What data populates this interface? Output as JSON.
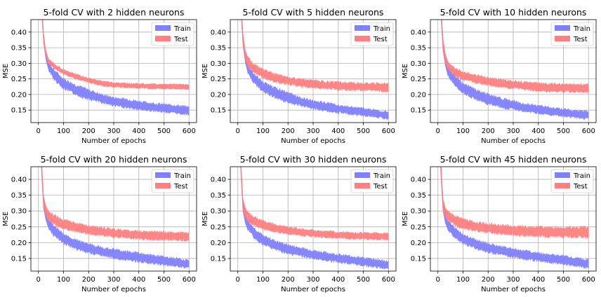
{
  "chart_data": [
    {
      "type": "area",
      "title": "5-fold CV with 2 hidden neurons",
      "xlabel": "Number of epochs",
      "ylabel": "MSE",
      "xlim": [
        -30,
        630
      ],
      "ylim": [
        0.11,
        0.44
      ],
      "xticks": [
        0,
        100,
        200,
        300,
        400,
        500,
        600
      ],
      "yticks": [
        0.15,
        0.2,
        0.25,
        0.3,
        0.35,
        0.4
      ],
      "grid": true,
      "legend_position": "top-right",
      "series": [
        {
          "name": "Train",
          "color": "#8080ff",
          "x": [
            0,
            10,
            20,
            30,
            40,
            60,
            80,
            100,
            150,
            200,
            250,
            300,
            350,
            400,
            450,
            500,
            550,
            600
          ],
          "lower": [
            0.9,
            0.5,
            0.37,
            0.31,
            0.28,
            0.25,
            0.235,
            0.22,
            0.2,
            0.185,
            0.175,
            0.165,
            0.158,
            0.152,
            0.148,
            0.144,
            0.14,
            0.136
          ],
          "upper": [
            0.95,
            0.55,
            0.4,
            0.33,
            0.305,
            0.28,
            0.265,
            0.25,
            0.23,
            0.215,
            0.2,
            0.19,
            0.185,
            0.178,
            0.172,
            0.168,
            0.165,
            0.16
          ]
        },
        {
          "name": "Test",
          "color": "#ff8080",
          "x": [
            0,
            10,
            20,
            30,
            40,
            60,
            80,
            100,
            150,
            200,
            250,
            300,
            350,
            400,
            450,
            500,
            550,
            600
          ],
          "lower": [
            0.9,
            0.5,
            0.37,
            0.32,
            0.3,
            0.285,
            0.275,
            0.265,
            0.25,
            0.238,
            0.228,
            0.224,
            0.222,
            0.22,
            0.219,
            0.218,
            0.218,
            0.217
          ],
          "upper": [
            0.95,
            0.55,
            0.4,
            0.34,
            0.315,
            0.3,
            0.29,
            0.28,
            0.265,
            0.252,
            0.244,
            0.238,
            0.236,
            0.235,
            0.234,
            0.233,
            0.233,
            0.232
          ]
        }
      ]
    },
    {
      "type": "area",
      "title": "5-fold CV with 5 hidden neurons",
      "xlabel": "Number of epochs",
      "ylabel": "MSE",
      "xlim": [
        -30,
        630
      ],
      "ylim": [
        0.11,
        0.44
      ],
      "xticks": [
        0,
        100,
        200,
        300,
        400,
        500,
        600
      ],
      "yticks": [
        0.15,
        0.2,
        0.25,
        0.3,
        0.35,
        0.4
      ],
      "grid": true,
      "legend_position": "top-right",
      "series": [
        {
          "name": "Train",
          "color": "#8080ff",
          "x": [
            0,
            10,
            20,
            30,
            40,
            60,
            80,
            100,
            150,
            200,
            250,
            300,
            350,
            400,
            450,
            500,
            550,
            600
          ],
          "lower": [
            0.9,
            0.5,
            0.36,
            0.3,
            0.27,
            0.24,
            0.225,
            0.21,
            0.19,
            0.175,
            0.165,
            0.155,
            0.148,
            0.142,
            0.137,
            0.133,
            0.128,
            0.122
          ],
          "upper": [
            0.95,
            0.55,
            0.4,
            0.33,
            0.3,
            0.27,
            0.255,
            0.24,
            0.22,
            0.205,
            0.19,
            0.18,
            0.173,
            0.166,
            0.16,
            0.155,
            0.15,
            0.145
          ]
        },
        {
          "name": "Test",
          "color": "#ff8080",
          "x": [
            0,
            10,
            20,
            30,
            40,
            60,
            80,
            100,
            150,
            200,
            250,
            300,
            350,
            400,
            450,
            500,
            550,
            600
          ],
          "lower": [
            0.9,
            0.5,
            0.36,
            0.31,
            0.29,
            0.275,
            0.265,
            0.255,
            0.24,
            0.232,
            0.226,
            0.222,
            0.219,
            0.216,
            0.214,
            0.213,
            0.212,
            0.21
          ],
          "upper": [
            0.95,
            0.55,
            0.4,
            0.34,
            0.32,
            0.3,
            0.29,
            0.28,
            0.265,
            0.255,
            0.249,
            0.245,
            0.241,
            0.239,
            0.237,
            0.236,
            0.236,
            0.236
          ]
        }
      ]
    },
    {
      "type": "area",
      "title": "5-fold CV with 10 hidden neurons",
      "xlabel": "Number of epochs",
      "ylabel": "MSE",
      "xlim": [
        -30,
        630
      ],
      "ylim": [
        0.11,
        0.44
      ],
      "xticks": [
        0,
        100,
        200,
        300,
        400,
        500,
        600
      ],
      "yticks": [
        0.15,
        0.2,
        0.25,
        0.3,
        0.35,
        0.4
      ],
      "grid": true,
      "legend_position": "top-right",
      "series": [
        {
          "name": "Train",
          "color": "#8080ff",
          "x": [
            0,
            10,
            20,
            30,
            40,
            60,
            80,
            100,
            150,
            200,
            250,
            300,
            350,
            400,
            450,
            500,
            550,
            600
          ],
          "lower": [
            0.9,
            0.48,
            0.34,
            0.29,
            0.26,
            0.235,
            0.22,
            0.205,
            0.185,
            0.17,
            0.16,
            0.152,
            0.145,
            0.14,
            0.135,
            0.13,
            0.126,
            0.122
          ],
          "upper": [
            0.95,
            0.53,
            0.38,
            0.32,
            0.29,
            0.265,
            0.25,
            0.235,
            0.215,
            0.2,
            0.188,
            0.178,
            0.17,
            0.164,
            0.158,
            0.153,
            0.148,
            0.145
          ]
        },
        {
          "name": "Test",
          "color": "#ff8080",
          "x": [
            0,
            10,
            20,
            30,
            40,
            60,
            80,
            100,
            150,
            200,
            250,
            300,
            350,
            400,
            450,
            500,
            550,
            600
          ],
          "lower": [
            0.9,
            0.48,
            0.34,
            0.3,
            0.28,
            0.265,
            0.255,
            0.248,
            0.238,
            0.23,
            0.224,
            0.22,
            0.215,
            0.212,
            0.21,
            0.209,
            0.208,
            0.207
          ],
          "upper": [
            0.95,
            0.53,
            0.38,
            0.33,
            0.305,
            0.29,
            0.28,
            0.272,
            0.262,
            0.254,
            0.248,
            0.243,
            0.239,
            0.236,
            0.234,
            0.233,
            0.233,
            0.232
          ]
        }
      ]
    },
    {
      "type": "area",
      "title": "5-fold CV with 20 hidden neurons",
      "xlabel": "Number of epochs",
      "ylabel": "MSE",
      "xlim": [
        -30,
        630
      ],
      "ylim": [
        0.11,
        0.44
      ],
      "xticks": [
        0,
        100,
        200,
        300,
        400,
        500,
        600
      ],
      "yticks": [
        0.15,
        0.2,
        0.25,
        0.3,
        0.35,
        0.4
      ],
      "grid": true,
      "legend_position": "top-right",
      "series": [
        {
          "name": "Train",
          "color": "#8080ff",
          "x": [
            0,
            10,
            20,
            30,
            40,
            60,
            80,
            100,
            150,
            200,
            250,
            300,
            350,
            400,
            450,
            500,
            550,
            600
          ],
          "lower": [
            0.9,
            0.46,
            0.31,
            0.27,
            0.245,
            0.225,
            0.21,
            0.198,
            0.18,
            0.168,
            0.16,
            0.152,
            0.145,
            0.14,
            0.135,
            0.13,
            0.125,
            0.12
          ],
          "upper": [
            0.95,
            0.51,
            0.35,
            0.3,
            0.275,
            0.255,
            0.24,
            0.226,
            0.208,
            0.195,
            0.185,
            0.178,
            0.172,
            0.166,
            0.16,
            0.155,
            0.15,
            0.142
          ]
        },
        {
          "name": "Test",
          "color": "#ff8080",
          "x": [
            0,
            10,
            20,
            30,
            40,
            60,
            80,
            100,
            150,
            200,
            250,
            300,
            350,
            400,
            450,
            500,
            550,
            600
          ],
          "lower": [
            0.9,
            0.46,
            0.31,
            0.285,
            0.27,
            0.26,
            0.252,
            0.245,
            0.235,
            0.228,
            0.222,
            0.218,
            0.215,
            0.212,
            0.21,
            0.209,
            0.208,
            0.207
          ],
          "upper": [
            0.95,
            0.51,
            0.35,
            0.315,
            0.3,
            0.288,
            0.279,
            0.272,
            0.261,
            0.253,
            0.247,
            0.243,
            0.239,
            0.236,
            0.234,
            0.233,
            0.232,
            0.231
          ]
        }
      ]
    },
    {
      "type": "area",
      "title": "5-fold CV with 30 hidden neurons",
      "xlabel": "Number of epochs",
      "ylabel": "MSE",
      "xlim": [
        -30,
        630
      ],
      "ylim": [
        0.11,
        0.44
      ],
      "xticks": [
        0,
        100,
        200,
        300,
        400,
        500,
        600
      ],
      "yticks": [
        0.15,
        0.2,
        0.25,
        0.3,
        0.35,
        0.4
      ],
      "grid": true,
      "legend_position": "top-right",
      "series": [
        {
          "name": "Train",
          "color": "#8080ff",
          "x": [
            0,
            10,
            20,
            30,
            40,
            60,
            80,
            100,
            150,
            200,
            250,
            300,
            350,
            400,
            450,
            500,
            550,
            600
          ],
          "lower": [
            0.9,
            0.45,
            0.3,
            0.26,
            0.24,
            0.22,
            0.205,
            0.195,
            0.178,
            0.166,
            0.158,
            0.15,
            0.144,
            0.138,
            0.133,
            0.128,
            0.122,
            0.118
          ],
          "upper": [
            0.95,
            0.5,
            0.34,
            0.295,
            0.27,
            0.25,
            0.235,
            0.222,
            0.205,
            0.192,
            0.183,
            0.175,
            0.168,
            0.162,
            0.157,
            0.152,
            0.147,
            0.14
          ]
        },
        {
          "name": "Test",
          "color": "#ff8080",
          "x": [
            0,
            10,
            20,
            30,
            40,
            60,
            80,
            100,
            150,
            200,
            250,
            300,
            350,
            400,
            450,
            500,
            550,
            600
          ],
          "lower": [
            0.9,
            0.45,
            0.3,
            0.28,
            0.267,
            0.257,
            0.25,
            0.244,
            0.235,
            0.228,
            0.223,
            0.219,
            0.216,
            0.214,
            0.212,
            0.211,
            0.21,
            0.21
          ],
          "upper": [
            0.95,
            0.5,
            0.34,
            0.31,
            0.295,
            0.283,
            0.275,
            0.268,
            0.257,
            0.249,
            0.243,
            0.239,
            0.236,
            0.234,
            0.232,
            0.231,
            0.23,
            0.23
          ]
        }
      ]
    },
    {
      "type": "area",
      "title": "5-fold CV with 45 hidden neurons",
      "xlabel": "Number of epochs",
      "ylabel": "MSE",
      "xlim": [
        -30,
        630
      ],
      "ylim": [
        0.11,
        0.44
      ],
      "xticks": [
        0,
        100,
        200,
        300,
        400,
        500,
        600
      ],
      "yticks": [
        0.15,
        0.2,
        0.25,
        0.3,
        0.35,
        0.4
      ],
      "grid": true,
      "legend_position": "top-right",
      "series": [
        {
          "name": "Train",
          "color": "#8080ff",
          "x": [
            0,
            10,
            20,
            30,
            40,
            60,
            80,
            100,
            150,
            200,
            250,
            300,
            350,
            400,
            450,
            500,
            550,
            600
          ],
          "lower": [
            0.9,
            0.44,
            0.3,
            0.26,
            0.24,
            0.222,
            0.208,
            0.198,
            0.182,
            0.17,
            0.162,
            0.155,
            0.148,
            0.142,
            0.137,
            0.132,
            0.127,
            0.12
          ],
          "upper": [
            0.95,
            0.49,
            0.34,
            0.295,
            0.27,
            0.252,
            0.238,
            0.226,
            0.209,
            0.197,
            0.188,
            0.18,
            0.174,
            0.168,
            0.162,
            0.157,
            0.152,
            0.145
          ]
        },
        {
          "name": "Test",
          "color": "#ff8080",
          "x": [
            0,
            10,
            20,
            30,
            40,
            60,
            80,
            100,
            150,
            200,
            250,
            300,
            350,
            400,
            450,
            500,
            550,
            600
          ],
          "lower": [
            0.9,
            0.44,
            0.3,
            0.28,
            0.268,
            0.258,
            0.251,
            0.246,
            0.238,
            0.232,
            0.228,
            0.224,
            0.222,
            0.22,
            0.219,
            0.218,
            0.218,
            0.218
          ],
          "upper": [
            0.95,
            0.49,
            0.34,
            0.31,
            0.298,
            0.287,
            0.28,
            0.274,
            0.265,
            0.259,
            0.255,
            0.252,
            0.25,
            0.249,
            0.248,
            0.248,
            0.248,
            0.248
          ]
        }
      ]
    }
  ]
}
